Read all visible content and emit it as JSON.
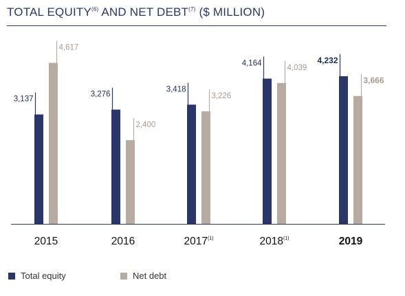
{
  "title": {
    "part1": "TOTAL EQUITY",
    "note1": "(6)",
    "part2": " AND NET DEBT",
    "note2": "(7)",
    "part3": " ($ MILLION)"
  },
  "colors": {
    "equity": "#2b3668",
    "debt": "#b8aba2",
    "equity_label": "#1f2a55",
    "debt_label": "#a99b90"
  },
  "legend": {
    "equity": "Total equity",
    "debt": "Net debt"
  },
  "chart_data": {
    "type": "bar",
    "categories": [
      "2015",
      "2016",
      "2017",
      "2018",
      "2019"
    ],
    "category_notes": [
      "",
      "",
      "(1)",
      "(1)",
      ""
    ],
    "highlight_category": "2019",
    "series": [
      {
        "name": "Total equity",
        "values": [
          3137,
          3276,
          3418,
          4164,
          4232
        ],
        "labels": [
          "3,137",
          "3,276",
          "3,418",
          "4,164",
          "4,232"
        ]
      },
      {
        "name": "Net debt",
        "values": [
          4617,
          2400,
          3226,
          4039,
          3666
        ],
        "labels": [
          "4,617",
          "2,400",
          "3,226",
          "4,039",
          "3,666"
        ]
      }
    ],
    "ylim": [
      0,
      5000
    ],
    "grid": false,
    "legend_position": "bottom-left"
  }
}
